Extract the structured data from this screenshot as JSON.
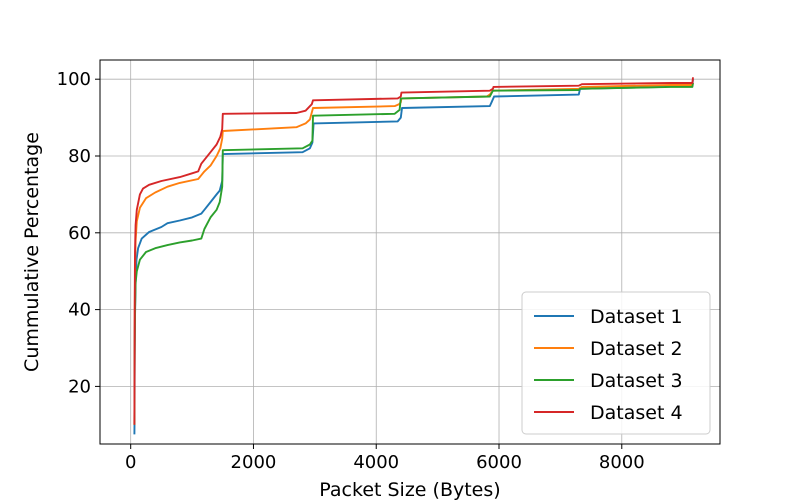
{
  "chart_data": {
    "type": "line",
    "title": "",
    "xlabel": "Packet Size (Bytes)",
    "ylabel": "Cummulative Percentage",
    "xlim": [
      -500,
      9600
    ],
    "ylim": [
      5,
      105
    ],
    "xticks": [
      0,
      2000,
      4000,
      6000,
      8000
    ],
    "yticks": [
      20,
      40,
      60,
      80,
      100
    ],
    "grid": true,
    "legend_position": "bottom-right",
    "series": [
      {
        "name": "Dataset 1",
        "color": "#1f77b4",
        "points": [
          [
            60,
            7.5
          ],
          [
            62,
            10
          ],
          [
            66,
            28
          ],
          [
            70,
            38
          ],
          [
            80,
            47
          ],
          [
            95,
            53
          ],
          [
            120,
            56
          ],
          [
            180,
            58.5
          ],
          [
            300,
            60.2
          ],
          [
            500,
            61.5
          ],
          [
            600,
            62.5
          ],
          [
            800,
            63.2
          ],
          [
            1000,
            64
          ],
          [
            1150,
            65
          ],
          [
            1200,
            66
          ],
          [
            1300,
            68
          ],
          [
            1400,
            70
          ],
          [
            1450,
            71
          ],
          [
            1490,
            73.5
          ],
          [
            1500,
            80.5
          ],
          [
            2800,
            81
          ],
          [
            2920,
            82
          ],
          [
            2960,
            83.5
          ],
          [
            2980,
            88.5
          ],
          [
            4350,
            89
          ],
          [
            4400,
            90
          ],
          [
            4420,
            92.5
          ],
          [
            5850,
            93
          ],
          [
            5880,
            94
          ],
          [
            5920,
            95.5
          ],
          [
            7300,
            96
          ],
          [
            7320,
            97.5
          ],
          [
            8700,
            98
          ],
          [
            8800,
            98.5
          ],
          [
            9150,
            98.5
          ],
          [
            9160,
            100
          ]
        ]
      },
      {
        "name": "Dataset 2",
        "color": "#ff7f0e",
        "points": [
          [
            60,
            10
          ],
          [
            62,
            18
          ],
          [
            66,
            35
          ],
          [
            70,
            50
          ],
          [
            80,
            58
          ],
          [
            100,
            63
          ],
          [
            150,
            66.5
          ],
          [
            250,
            69
          ],
          [
            400,
            70.5
          ],
          [
            600,
            72
          ],
          [
            800,
            73
          ],
          [
            1100,
            74
          ],
          [
            1150,
            75
          ],
          [
            1200,
            76
          ],
          [
            1300,
            77.5
          ],
          [
            1400,
            80
          ],
          [
            1460,
            82
          ],
          [
            1490,
            84.5
          ],
          [
            1500,
            86.5
          ],
          [
            2700,
            87.5
          ],
          [
            2850,
            88.5
          ],
          [
            2920,
            89.5
          ],
          [
            2970,
            92.5
          ],
          [
            4300,
            93
          ],
          [
            4370,
            93.5
          ],
          [
            4400,
            94
          ],
          [
            4410,
            95
          ],
          [
            5800,
            95.5
          ],
          [
            5850,
            96
          ],
          [
            5900,
            97
          ],
          [
            7300,
            97.5
          ],
          [
            7350,
            98
          ],
          [
            8800,
            98.5
          ],
          [
            9150,
            98.5
          ],
          [
            9160,
            99
          ]
        ]
      },
      {
        "name": "Dataset 3",
        "color": "#2ca02c",
        "points": [
          [
            60,
            10
          ],
          [
            62,
            18
          ],
          [
            66,
            30
          ],
          [
            70,
            40
          ],
          [
            80,
            47
          ],
          [
            100,
            50
          ],
          [
            150,
            53
          ],
          [
            250,
            55
          ],
          [
            400,
            56
          ],
          [
            600,
            56.8
          ],
          [
            800,
            57.5
          ],
          [
            1000,
            58
          ],
          [
            1150,
            58.5
          ],
          [
            1200,
            61
          ],
          [
            1300,
            64
          ],
          [
            1400,
            66
          ],
          [
            1450,
            68
          ],
          [
            1490,
            72
          ],
          [
            1500,
            81.5
          ],
          [
            2800,
            82
          ],
          [
            2920,
            83
          ],
          [
            2960,
            84
          ],
          [
            2970,
            90.5
          ],
          [
            4300,
            91
          ],
          [
            4380,
            92
          ],
          [
            4400,
            95
          ],
          [
            5850,
            95.5
          ],
          [
            5900,
            97
          ],
          [
            7300,
            97.2
          ],
          [
            7320,
            97.5
          ],
          [
            8800,
            98
          ],
          [
            9150,
            98
          ],
          [
            9160,
            99
          ]
        ]
      },
      {
        "name": "Dataset 4",
        "color": "#d62728",
        "points": [
          [
            60,
            10
          ],
          [
            62,
            20
          ],
          [
            66,
            40
          ],
          [
            70,
            55
          ],
          [
            80,
            62
          ],
          [
            100,
            66
          ],
          [
            150,
            70
          ],
          [
            200,
            71.5
          ],
          [
            300,
            72.5
          ],
          [
            500,
            73.5
          ],
          [
            800,
            74.5
          ],
          [
            1000,
            75.5
          ],
          [
            1100,
            76
          ],
          [
            1150,
            78
          ],
          [
            1200,
            79
          ],
          [
            1300,
            81
          ],
          [
            1400,
            83
          ],
          [
            1460,
            85
          ],
          [
            1490,
            87
          ],
          [
            1500,
            91
          ],
          [
            2700,
            91.2
          ],
          [
            2850,
            91.8
          ],
          [
            2950,
            93.5
          ],
          [
            2970,
            94.5
          ],
          [
            4350,
            95
          ],
          [
            4400,
            95.5
          ],
          [
            4410,
            96.5
          ],
          [
            5850,
            97
          ],
          [
            5900,
            97.5
          ],
          [
            5910,
            98
          ],
          [
            7300,
            98.3
          ],
          [
            7350,
            98.7
          ],
          [
            8800,
            99
          ],
          [
            9150,
            99
          ],
          [
            9160,
            100.5
          ]
        ]
      }
    ]
  }
}
